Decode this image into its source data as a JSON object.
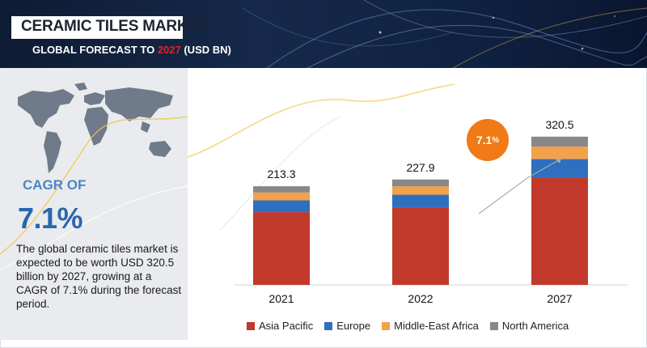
{
  "header": {
    "title": "CERAMIC TILES MARKET",
    "subtitle_prefix": "GLOBAL FORECAST TO ",
    "subtitle_year": "2027",
    "subtitle_suffix": " (USD BN)"
  },
  "left_panel": {
    "cagr_label": "CAGR OF",
    "cagr_value": "7.1%",
    "description": "The global ceramic tiles market is expected to be worth USD 320.5 billion by 2027, growing at a CAGR of 7.1% during the forecast period."
  },
  "cagr_bubble": {
    "value": "7.1",
    "unit": "%"
  },
  "colors": {
    "asia_pacific": "#c0392b",
    "europe": "#2e6fc0",
    "middle_east_africa": "#f5a04a",
    "north_america": "#888888",
    "accent_orange": "#f07a16"
  },
  "chart_data": {
    "type": "bar",
    "stacked": true,
    "categories": [
      "2021",
      "2022",
      "2027"
    ],
    "totals": [
      213.3,
      227.9,
      320.5
    ],
    "total_labels": [
      "213.3",
      "227.9",
      "320.5"
    ],
    "series": [
      {
        "name": "Asia Pacific",
        "values": [
          157.3,
          167.0,
          232.0
        ]
      },
      {
        "name": "Europe",
        "values": [
          25.5,
          28.0,
          40.0
        ]
      },
      {
        "name": "Middle-East Africa",
        "values": [
          17.0,
          18.0,
          27.0
        ]
      },
      {
        "name": "North America",
        "values": [
          13.5,
          14.9,
          21.5
        ]
      }
    ],
    "ylim": [
      0,
      420
    ],
    "legend_position": "bottom",
    "grid": false
  }
}
